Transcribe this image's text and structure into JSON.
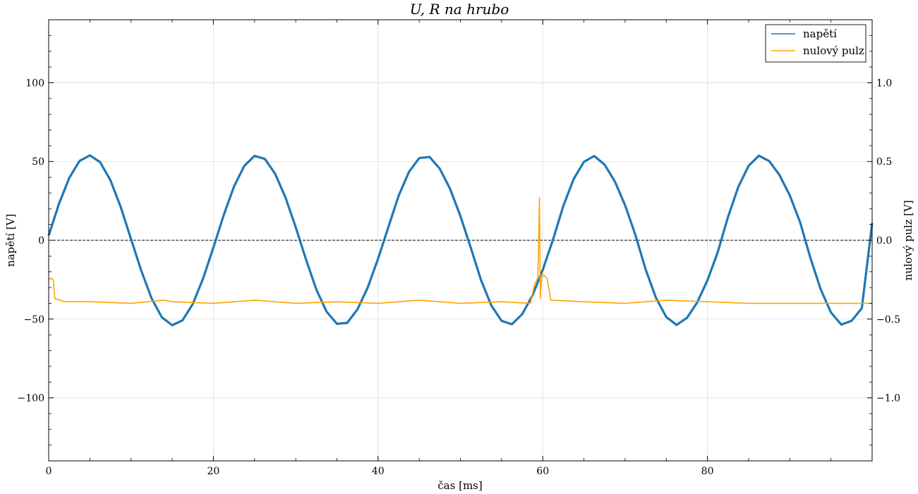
{
  "chart_data": {
    "type": "line",
    "title": "U, R na hrubo",
    "xlabel": "čas [ms]",
    "ylabel": "napětí [V]",
    "ylabel_right": "nulový pulz [V]",
    "xlim": [
      0,
      100
    ],
    "ylim": [
      -140,
      140
    ],
    "ylim_right": [
      -1.4,
      1.4
    ],
    "x_ticks": [
      0,
      20,
      40,
      60,
      80
    ],
    "x_tick_labels": [
      "0",
      "20",
      "40",
      "60",
      "80"
    ],
    "y_ticks": [
      -100,
      -50,
      0,
      50,
      100
    ],
    "y_tick_labels": [
      "−100",
      "−50",
      "0",
      "50",
      "100"
    ],
    "y_right_ticks": [
      -1.0,
      -0.5,
      0.0,
      0.5,
      1.0
    ],
    "y_right_tick_labels": [
      "−1.0",
      "−0.5",
      "0.0",
      "0.5",
      "1.0"
    ],
    "grid": true,
    "legend_position": "top-right",
    "zero_line": true,
    "series": [
      {
        "name": "napětí",
        "axis": "left",
        "color": "#1f77b4",
        "x": [
          0,
          1.25,
          2.5,
          3.75,
          5,
          6.25,
          7.5,
          8.75,
          10,
          11.25,
          12.5,
          13.75,
          15,
          16.25,
          17.5,
          18.75,
          20,
          21.25,
          22.5,
          23.75,
          25,
          26.25,
          27.5,
          28.75,
          30,
          31.25,
          32.5,
          33.75,
          35,
          36.25,
          37.5,
          38.75,
          40,
          41.25,
          42.5,
          43.75,
          45,
          46.25,
          47.5,
          48.75,
          50,
          51.25,
          52.5,
          53.75,
          55,
          56.25,
          57.5,
          58.75,
          60,
          61.25,
          62.5,
          63.75,
          65,
          66.25,
          67.5,
          68.75,
          70,
          71.25,
          72.5,
          73.75,
          75,
          76.25,
          77.5,
          78.75,
          80,
          81.25,
          82.5,
          83.75,
          85,
          86.25,
          87.5,
          88.75,
          90,
          91.25,
          92.5,
          93.75,
          95,
          96.25,
          97.5,
          98.75,
          100
        ],
        "y": [
          3,
          23.2,
          39.6,
          50.4,
          53.9,
          49.6,
          38.1,
          21.1,
          0.8,
          -19.4,
          -36.9,
          -48.9,
          -53.9,
          -50.8,
          -40.4,
          -24.3,
          -4.6,
          15.9,
          34.1,
          47.2,
          53.6,
          51.7,
          42.2,
          27.3,
          8.3,
          -12.2,
          -31.2,
          -45.3,
          -53.0,
          -52.4,
          -43.8,
          -29.9,
          -11.7,
          8.4,
          28.3,
          43.4,
          52.2,
          52.9,
          45.4,
          32.6,
          15.4,
          -4.6,
          -25.2,
          -41.3,
          -51.1,
          -53.3,
          -46.9,
          -35.0,
          -18.8,
          0.5,
          21.9,
          38.9,
          49.8,
          53.5,
          48.1,
          37.4,
          22.2,
          3.4,
          -18.6,
          -36.5,
          -48.7,
          -53.7,
          -49.3,
          -39.5,
          -25.4,
          -7.5,
          14.9,
          33.9,
          47.3,
          53.7,
          50.3,
          41.4,
          28.5,
          11.5,
          -11.1,
          -31.1,
          -45.8,
          -53.5,
          -51.1,
          -43.1,
          11
        ]
      },
      {
        "name": "nulový pulz",
        "axis": "right",
        "color": "#ffa500",
        "x": [
          0,
          0.3,
          0.55,
          0.75,
          2,
          5,
          10,
          14,
          15,
          20,
          25,
          30,
          35,
          40,
          45,
          50,
          55,
          58.5,
          59.0,
          59.4,
          59.6,
          59.7,
          59.85,
          60.1,
          60.5,
          61,
          65,
          70,
          75,
          80,
          85,
          90,
          95,
          100
        ],
        "y": [
          -0.25,
          -0.24,
          -0.25,
          -0.37,
          -0.39,
          -0.39,
          -0.4,
          -0.38,
          -0.39,
          -0.4,
          -0.38,
          -0.4,
          -0.39,
          -0.4,
          -0.38,
          -0.4,
          -0.39,
          -0.4,
          -0.28,
          -0.24,
          0.27,
          -0.37,
          -0.24,
          -0.22,
          -0.24,
          -0.38,
          -0.39,
          -0.4,
          -0.38,
          -0.39,
          -0.4,
          -0.4,
          -0.4,
          -0.4
        ]
      }
    ]
  }
}
